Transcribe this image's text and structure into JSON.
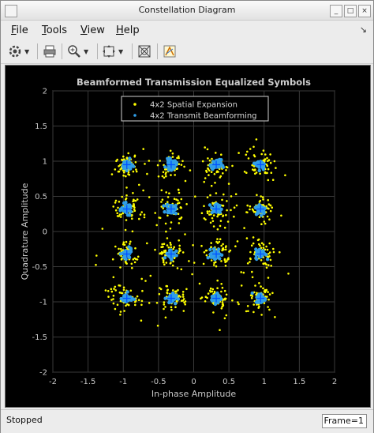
{
  "window": {
    "title": "Constellation Diagram",
    "dock_glyph": "↘"
  },
  "menu": [
    {
      "label": "File",
      "key": "F",
      "rest": "ile"
    },
    {
      "label": "Tools",
      "key": "T",
      "rest": "ools"
    },
    {
      "label": "View",
      "key": "V",
      "rest": "iew"
    },
    {
      "label": "Help",
      "key": "H",
      "rest": "elp"
    }
  ],
  "toolbar": [
    "settings-icon",
    "print-icon",
    "zoom-in-icon",
    "autoscale-icon",
    "measurements-icon",
    "style-icon"
  ],
  "status": {
    "text": "Stopped",
    "frame": "Frame=1"
  },
  "colors": {
    "plot_bg": "#000000",
    "series1": "#ffff00",
    "series2": "#2f9ee8",
    "reference": "#0050ff",
    "text": "#c8c8c8",
    "title": "#cccccc"
  },
  "chart_data": {
    "type": "scatter",
    "title": "Beamformed Transmission Equalized Symbols",
    "xlabel": "In-phase Amplitude",
    "ylabel": "Quadrature Amplitude",
    "xlim": [
      -2,
      2
    ],
    "ylim": [
      -2,
      2
    ],
    "x_ticks": [
      "-2",
      "-1.5",
      "-1",
      "-0.5",
      "0",
      "0.5",
      "1",
      "1.5",
      "2"
    ],
    "y_ticks": [
      "2",
      "1.5",
      "1",
      "0.5",
      "0",
      "-0.5",
      "-1",
      "-1.5",
      "-2"
    ],
    "grid": true,
    "legend_position": "top-center",
    "constellation_points_I": [
      -0.95,
      -0.32,
      0.32,
      0.95
    ],
    "constellation_points_Q": [
      0.95,
      0.32,
      -0.32,
      -0.95
    ],
    "series": [
      {
        "name": "4x2 Spatial Expansion",
        "spread": 0.09,
        "points_per_cluster": 60,
        "color": "#ffff00"
      },
      {
        "name": "4x2 Transmit Beamforming",
        "spread": 0.035,
        "points_per_cluster": 40,
        "color": "#2f9ee8"
      }
    ]
  }
}
